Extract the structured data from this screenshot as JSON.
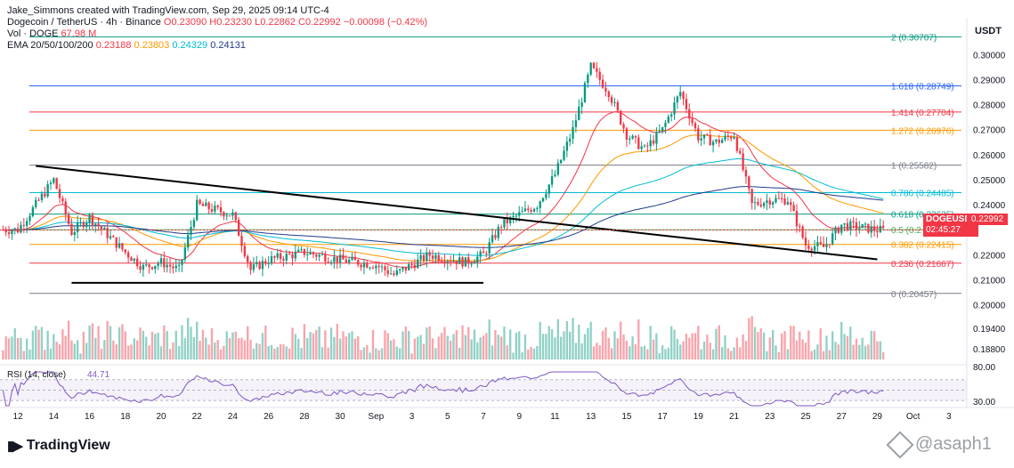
{
  "header": {
    "publisher": "Jake_Simmons created with TradingView.com, Sep 29, 2025 09:14 UTC-4",
    "symbol": "Dogecoin / TetherUS · 4h · Binance",
    "o": "O0.23090",
    "h": "H0.23230",
    "l": "L0.22862",
    "c": "C0.22992",
    "change": "−0.00098 (−0.42%)",
    "vol_label": "Vol · DOGE",
    "vol_value": "67.98 M",
    "ema_label": "EMA 20/50/100/200",
    "ema20": "0.23188",
    "ema50": "0.23803",
    "ema100": "0.24329",
    "ema200": "0.24131"
  },
  "price_axis": {
    "currency": "USDT",
    "ticks": [
      "0.30000",
      "0.29000",
      "0.28000",
      "0.27000",
      "0.26000",
      "0.25000",
      "0.24000",
      "0.22000",
      "0.21000",
      "0.20000",
      "0.19400",
      "0.18800"
    ]
  },
  "rsi": {
    "label": "RSI (14, close)",
    "value": "44.71",
    "ticks": [
      "80.00",
      "30.00"
    ]
  },
  "fib_levels": [
    {
      "label": "2 (0.30707)",
      "price": 0.30707,
      "color": "#089981"
    },
    {
      "label": "1.618 (0.28749)",
      "price": 0.28749,
      "color": "#2962ff"
    },
    {
      "label": "1.414 (0.27704)",
      "price": 0.27704,
      "color": "#f23645"
    },
    {
      "label": "1.272 (0.26976)",
      "price": 0.26976,
      "color": "#ff9800"
    },
    {
      "label": "1 (0.25582)",
      "price": 0.25582,
      "color": "#787b86"
    },
    {
      "label": "0.786 (0.24485)",
      "price": 0.24485,
      "color": "#00bcd4"
    },
    {
      "label": "0.618 (0.23625)",
      "price": 0.23625,
      "color": "#089981"
    },
    {
      "label": "0.5 (0.2",
      "price": 0.23,
      "color": "#4caf50"
    },
    {
      "label": "0.382 (0.22415)",
      "price": 0.22415,
      "color": "#ff9800"
    },
    {
      "label": "0.236 (0.21667)",
      "price": 0.21667,
      "color": "#f23645"
    },
    {
      "label": "0 (0.20457)",
      "price": 0.20457,
      "color": "#787b86"
    }
  ],
  "current_price": {
    "symbol": "DOGEUSDT",
    "price": "0.22992",
    "countdown": "02:45:27"
  },
  "time_axis": [
    "12",
    "14",
    "16",
    "18",
    "20",
    "22",
    "24",
    "26",
    "28",
    "30",
    "Sep",
    "3",
    "5",
    "7",
    "9",
    "11",
    "13",
    "15",
    "17",
    "19",
    "21",
    "23",
    "25",
    "27",
    "29",
    "Oct",
    "3"
  ],
  "chart_data": {
    "type": "candlestick",
    "title": "Dogecoin / TetherUS · 4h · Binance",
    "timeframe": "4h",
    "x_range": [
      "Aug 11, 2025",
      "Oct 3, 2025"
    ],
    "y_range": [
      0.2045,
      0.3072
    ],
    "approx_close_path": [
      {
        "x": "Aug 12",
        "close": 0.23
      },
      {
        "x": "Aug 14",
        "close": 0.25
      },
      {
        "x": "Aug 15",
        "close": 0.229
      },
      {
        "x": "Aug 16",
        "close": 0.235
      },
      {
        "x": "Aug 18",
        "close": 0.221
      },
      {
        "x": "Aug 19",
        "close": 0.215
      },
      {
        "x": "Aug 20",
        "close": 0.217
      },
      {
        "x": "Aug 21",
        "close": 0.214
      },
      {
        "x": "Aug 22",
        "close": 0.24
      },
      {
        "x": "Aug 24",
        "close": 0.236
      },
      {
        "x": "Aug 25",
        "close": 0.214
      },
      {
        "x": "Aug 26",
        "close": 0.218
      },
      {
        "x": "Aug 28",
        "close": 0.221
      },
      {
        "x": "Aug 30",
        "close": 0.218
      },
      {
        "x": "Sep 1",
        "close": 0.216
      },
      {
        "x": "Sep 2",
        "close": 0.212
      },
      {
        "x": "Sep 4",
        "close": 0.22
      },
      {
        "x": "Sep 6",
        "close": 0.217
      },
      {
        "x": "Sep 7",
        "close": 0.22
      },
      {
        "x": "Sep 8",
        "close": 0.232
      },
      {
        "x": "Sep 10",
        "close": 0.24
      },
      {
        "x": "Sep 11",
        "close": 0.252
      },
      {
        "x": "Sep 12",
        "close": 0.27
      },
      {
        "x": "Sep 13",
        "close": 0.295
      },
      {
        "x": "Sep 14",
        "close": 0.285
      },
      {
        "x": "Sep 15",
        "close": 0.268
      },
      {
        "x": "Sep 16",
        "close": 0.262
      },
      {
        "x": "Sep 17",
        "close": 0.27
      },
      {
        "x": "Sep 18",
        "close": 0.285
      },
      {
        "x": "Sep 19",
        "close": 0.267
      },
      {
        "x": "Sep 20",
        "close": 0.265
      },
      {
        "x": "Sep 21",
        "close": 0.268
      },
      {
        "x": "Sep 22",
        "close": 0.24
      },
      {
        "x": "Sep 23",
        "close": 0.242
      },
      {
        "x": "Sep 24",
        "close": 0.242
      },
      {
        "x": "Sep 25",
        "close": 0.224
      },
      {
        "x": "Sep 26",
        "close": 0.223
      },
      {
        "x": "Sep 27",
        "close": 0.232
      },
      {
        "x": "Sep 28",
        "close": 0.231
      },
      {
        "x": "Sep 29",
        "close": 0.22992
      }
    ],
    "ema_lines": [
      "EMA 20",
      "EMA 50",
      "EMA 100",
      "EMA 200"
    ],
    "trendlines": [
      {
        "name": "descending resistance",
        "from": {
          "x": "Aug 13",
          "price": 0.2555
        },
        "to": {
          "x": "Sep 29",
          "price": 0.2182
        }
      },
      {
        "name": "horizontal support",
        "from": {
          "x": "Aug 15",
          "price": 0.2088
        },
        "to": {
          "x": "Sep 7",
          "price": 0.2088
        }
      }
    ],
    "rsi": {
      "name": "RSI (14, close)",
      "latest": 44.71,
      "bands": [
        30,
        70
      ],
      "ylim": [
        20,
        85
      ]
    }
  },
  "branding": {
    "logo_text": "TradingView",
    "watermark": "@asaph1"
  }
}
